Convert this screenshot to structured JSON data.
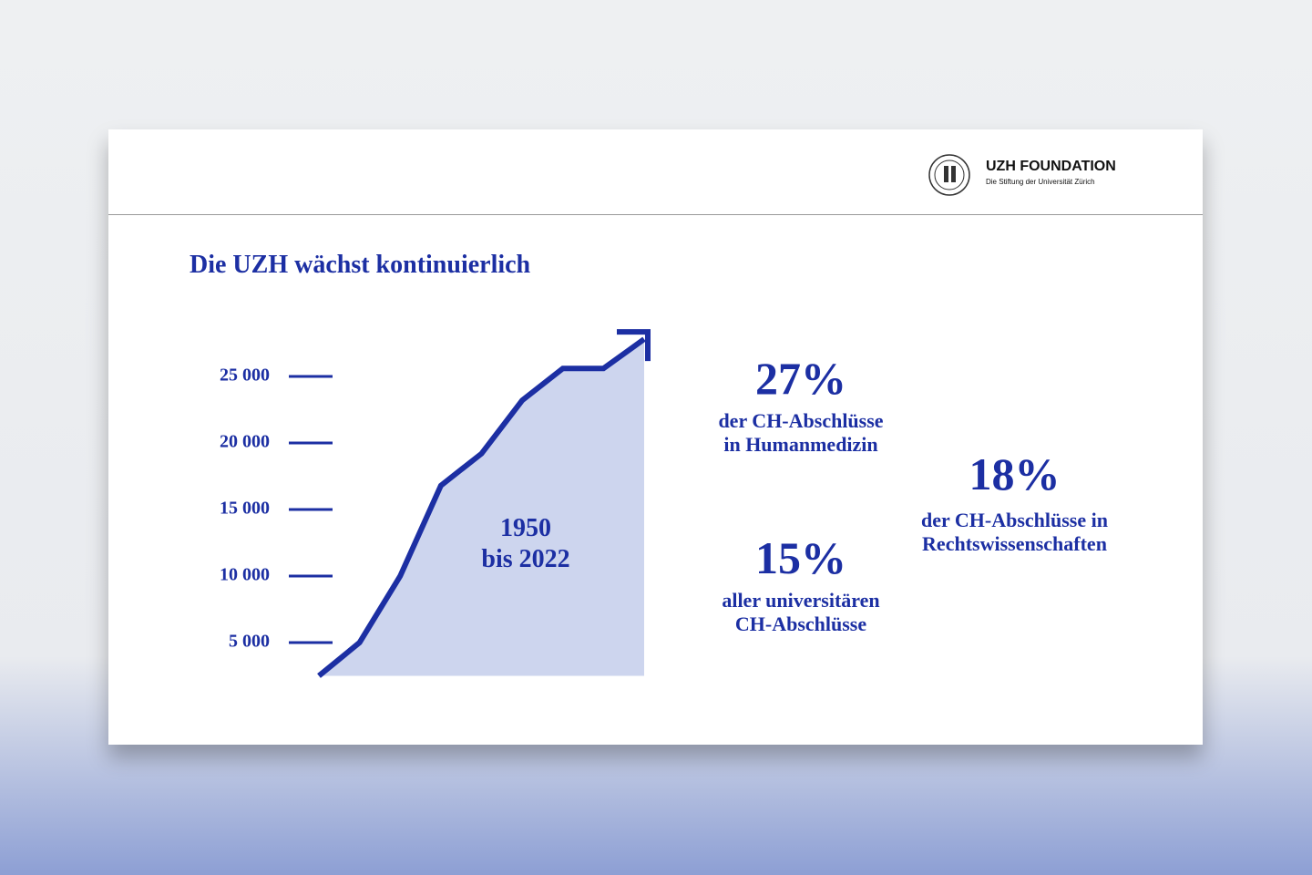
{
  "header": {
    "brand": "UZH FOUNDATION",
    "tagline": "Die Stiftung der Universität Zürich"
  },
  "chart_data": {
    "type": "area",
    "title": "Die UZH wächst kontinuierlich",
    "categories": [
      null,
      null,
      null,
      null,
      null,
      null,
      null,
      null,
      null
    ],
    "values": [
      2500,
      5000,
      10000,
      16800,
      19200,
      23200,
      25600,
      25600,
      27800
    ],
    "color": "#1c2fa3",
    "fill": "#cdd5ee",
    "ylim": [
      0,
      30000
    ],
    "yticks": [
      {
        "value": 5000,
        "label": "5 000"
      },
      {
        "value": 10000,
        "label": "10 000"
      },
      {
        "value": 15000,
        "label": "15 000"
      },
      {
        "value": 20000,
        "label": "20 000"
      },
      {
        "value": 25000,
        "label": "25 000"
      }
    ],
    "annotation": [
      "1950",
      "bis 2022"
    ]
  },
  "stats": [
    {
      "value": "27%",
      "lines": [
        "der CH-Abschlüsse",
        "in Humanmedizin"
      ]
    },
    {
      "value": "18%",
      "lines": [
        "der CH-Abschlüsse in",
        "Rechtswissenschaften"
      ]
    },
    {
      "value": "15%",
      "lines": [
        "aller universitären",
        "CH-Abschlüsse"
      ]
    }
  ]
}
